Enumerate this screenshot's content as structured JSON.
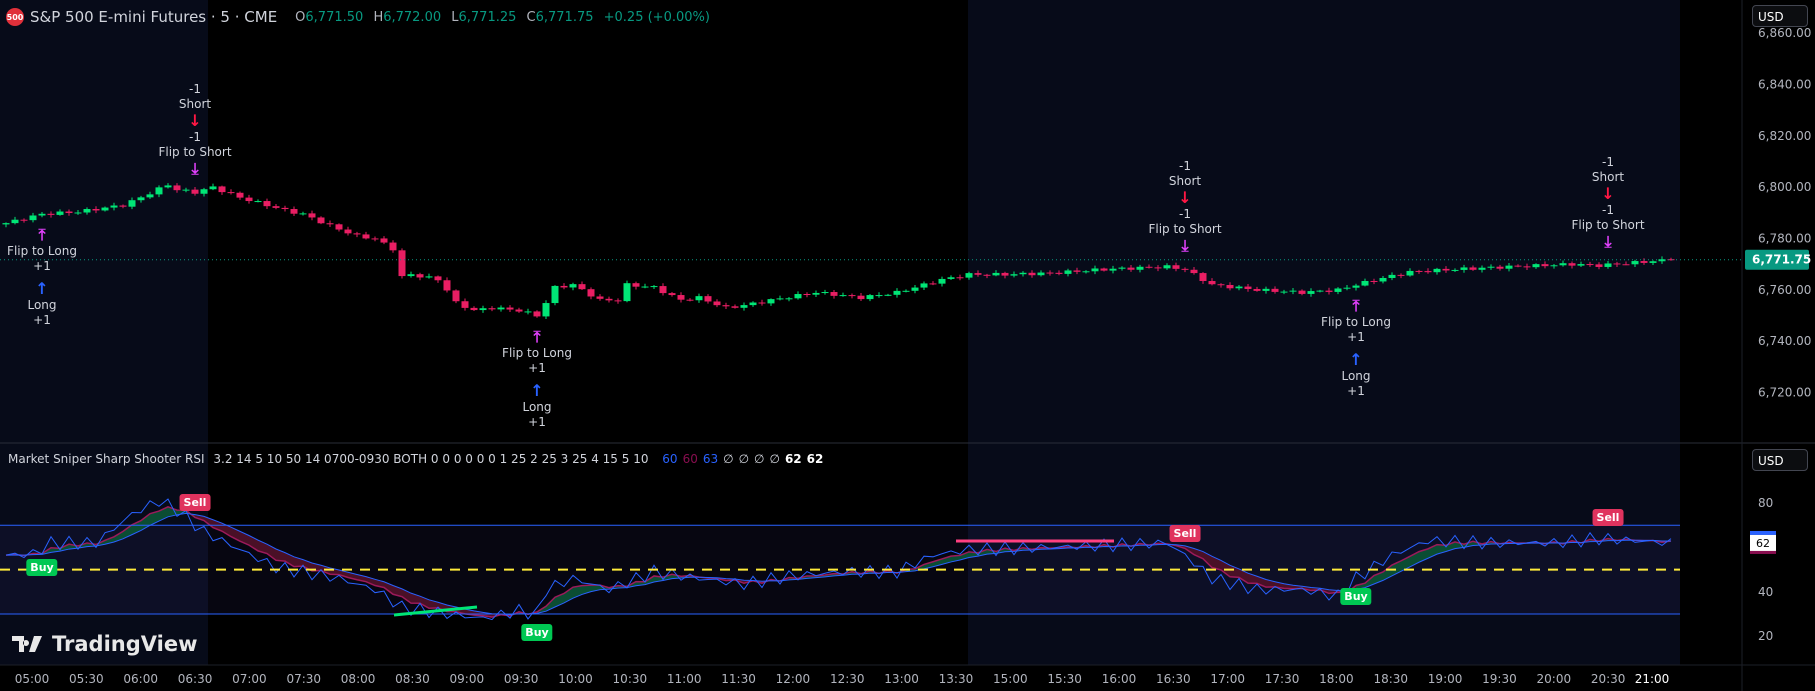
{
  "header": {
    "logo_text": "500",
    "symbol": "S&P 500 E-mini Futures · 5 · CME",
    "open_label": "O",
    "open": "6,771.50",
    "high_label": "H",
    "high": "6,772.00",
    "low_label": "L",
    "low": "6,771.25",
    "close_label": "C",
    "close": "6,771.75",
    "change": "+0.25 (+0.00%)"
  },
  "currency_main": "USD",
  "currency_indicator": "USD",
  "price_axis": {
    "ticks": [
      "6,860.00",
      "6,840.00",
      "6,820.00",
      "6,800.00",
      "6,780.00",
      "6,760.00",
      "6,740.00",
      "6,720.00"
    ],
    "tick_values": [
      6860,
      6840,
      6820,
      6800,
      6780,
      6760,
      6740,
      6720
    ],
    "last_price": "6,771.75",
    "last_price_value": 6771.75
  },
  "indicator": {
    "name": "Market Sniper Sharp Shooter RSI",
    "params": "3.2 14 5 10 50 14 0700-0930 BOTH 0 0 0 0 0 0 1 25 2 25 3 25 4 15 5 10",
    "values": [
      {
        "text": "60",
        "color": "#2962ff"
      },
      {
        "text": "60",
        "color": "#880e4f"
      },
      {
        "text": "63",
        "color": "#2962ff"
      },
      {
        "text": "∅",
        "color": "#d1d4dc"
      },
      {
        "text": "∅",
        "color": "#d1d4dc"
      },
      {
        "text": "∅",
        "color": "#d1d4dc"
      },
      {
        "text": "∅",
        "color": "#d1d4dc"
      },
      {
        "text": "62",
        "color": "#ffffff"
      },
      {
        "text": "62",
        "color": "#ffffff"
      }
    ],
    "axis_ticks": [
      "80",
      "40",
      "20"
    ],
    "axis_tick_values": [
      80,
      40,
      20
    ],
    "upper_level": 70,
    "mid_level": 50,
    "lower_level": 30,
    "current_value": "62"
  },
  "time_axis": [
    "05:00",
    "05:30",
    "06:00",
    "06:30",
    "07:00",
    "07:30",
    "08:00",
    "08:30",
    "09:00",
    "09:30",
    "10:00",
    "10:30",
    "11:00",
    "11:30",
    "12:00",
    "12:30",
    "13:00",
    "13:30",
    "15:00",
    "15:30",
    "16:00",
    "16:30",
    "17:00",
    "17:30",
    "18:00",
    "18:30",
    "19:00",
    "19:30",
    "20:00",
    "20:30",
    "21:00"
  ],
  "colors": {
    "up": "#00e676",
    "down": "#e91e63",
    "rsi_line": "#2962ff",
    "band_bull": "#0b4d33",
    "band_bear": "#4a1027",
    "mid": "#ffeb3b",
    "flip": "#e040fb",
    "long_arrow": "#2962ff",
    "short_arrow": "#ff1744",
    "last_price": "#089981"
  },
  "price_anchors": [
    [
      0,
      6786
    ],
    [
      4,
      6789.5
    ],
    [
      8,
      6790.4
    ],
    [
      13,
      6793
    ],
    [
      15,
      6796
    ],
    [
      18,
      6801
    ],
    [
      19,
      6799
    ],
    [
      21,
      6798
    ],
    [
      23,
      6800
    ],
    [
      26,
      6796
    ],
    [
      28,
      6794
    ],
    [
      31,
      6791
    ],
    [
      33,
      6789.5
    ],
    [
      36,
      6785
    ],
    [
      39,
      6781
    ],
    [
      41,
      6780
    ],
    [
      43,
      6776
    ],
    [
      44,
      6765
    ],
    [
      45,
      6766
    ],
    [
      48,
      6764
    ],
    [
      49,
      6760
    ],
    [
      50,
      6755
    ],
    [
      52,
      6752
    ],
    [
      54,
      6753
    ],
    [
      57,
      6752
    ],
    [
      59,
      6750
    ],
    [
      60,
      6755
    ],
    [
      61,
      6761
    ],
    [
      63,
      6762
    ],
    [
      66,
      6756
    ],
    [
      68,
      6756
    ],
    [
      69,
      6762
    ],
    [
      72,
      6761
    ],
    [
      75,
      6756
    ],
    [
      77,
      6757
    ],
    [
      80,
      6753
    ],
    [
      82,
      6754
    ],
    [
      85,
      6756
    ],
    [
      90,
      6759
    ],
    [
      95,
      6757
    ],
    [
      99,
      6759
    ],
    [
      102,
      6762
    ],
    [
      104,
      6764
    ],
    [
      107,
      6766
    ],
    [
      111,
      6766
    ],
    [
      116,
      6766.5
    ],
    [
      122,
      6768
    ],
    [
      129,
      6769
    ],
    [
      131,
      6768
    ],
    [
      134,
      6762
    ],
    [
      139,
      6760
    ],
    [
      144,
      6759
    ],
    [
      148,
      6760
    ],
    [
      150,
      6762
    ],
    [
      153,
      6764.6
    ],
    [
      156,
      6767
    ],
    [
      161,
      6768
    ],
    [
      167,
      6769
    ],
    [
      174,
      6770
    ],
    [
      177,
      6769.5
    ],
    [
      185,
      6771.75
    ]
  ],
  "rsi_anchors": [
    [
      0,
      56.5
    ],
    [
      3,
      57
    ],
    [
      5,
      62
    ],
    [
      10,
      62
    ],
    [
      14,
      75
    ],
    [
      17,
      81
    ],
    [
      19,
      77
    ],
    [
      22,
      67
    ],
    [
      26,
      59
    ],
    [
      30,
      51
    ],
    [
      33,
      49
    ],
    [
      37,
      46
    ],
    [
      41,
      41
    ],
    [
      44,
      33
    ],
    [
      49,
      30
    ],
    [
      53,
      28
    ],
    [
      57,
      31.5
    ],
    [
      59,
      30
    ],
    [
      60,
      41
    ],
    [
      63,
      46
    ],
    [
      67,
      41
    ],
    [
      72,
      49
    ],
    [
      77,
      46
    ],
    [
      82,
      43.5
    ],
    [
      87,
      47
    ],
    [
      93,
      49
    ],
    [
      99,
      49
    ],
    [
      103,
      56.5
    ],
    [
      107,
      59
    ],
    [
      116,
      60
    ],
    [
      129,
      62
    ],
    [
      131,
      56.5
    ],
    [
      134,
      46
    ],
    [
      139,
      41
    ],
    [
      144,
      41
    ],
    [
      148,
      38
    ],
    [
      150,
      46
    ],
    [
      154,
      56.5
    ],
    [
      158,
      63
    ],
    [
      165,
      62
    ],
    [
      172,
      62
    ],
    [
      177,
      64
    ],
    [
      185,
      62
    ]
  ],
  "annotations": [
    {
      "type": "flip-long",
      "bar": 4,
      "lines": [
        "Flip to Long",
        "+1"
      ],
      "sub": [
        "Long",
        "+1"
      ]
    },
    {
      "type": "flip-short",
      "bar": 21,
      "pre": [
        "-1",
        "Short"
      ],
      "lines": [
        "-1",
        "Flip to Short"
      ]
    },
    {
      "type": "flip-long",
      "bar": 59,
      "lines": [
        "Flip to Long",
        "+1"
      ],
      "sub": [
        "Long",
        "+1"
      ]
    },
    {
      "type": "flip-short",
      "bar": 131,
      "pre": [
        "-1",
        "Short"
      ],
      "lines": [
        "-1",
        "Flip to Short"
      ]
    },
    {
      "type": "flip-long",
      "bar": 150,
      "lines": [
        "Flip to Long",
        "+1"
      ],
      "sub": [
        "Long",
        "+1"
      ]
    },
    {
      "type": "flip-short",
      "bar": 178,
      "pre": [
        "-1",
        "Short"
      ],
      "lines": [
        "-1",
        "Flip to Short"
      ]
    }
  ],
  "signals": [
    {
      "label": "Buy",
      "bar": 4,
      "kind": "buy"
    },
    {
      "label": "Sell",
      "bar": 21,
      "kind": "sell"
    },
    {
      "label": "Buy",
      "bar": 59,
      "kind": "buy"
    },
    {
      "label": "Sell",
      "bar": 131,
      "kind": "sell"
    },
    {
      "label": "Buy",
      "bar": 150,
      "kind": "buy"
    },
    {
      "label": "Sell",
      "bar": 178,
      "kind": "sell"
    }
  ],
  "watermark": "TradingView"
}
